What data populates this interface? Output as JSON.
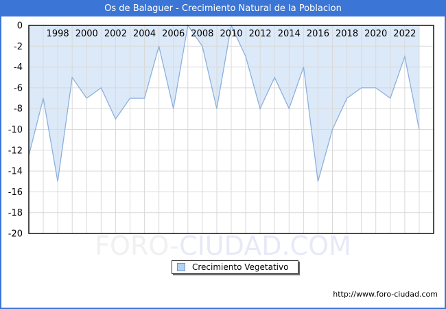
{
  "title_bar": {
    "text": "Os de Balaguer - Crecimiento Natural de la Poblacion"
  },
  "chart_data": {
    "type": "area",
    "title": "Os de Balaguer - Crecimiento Natural de la Poblacion",
    "series": [
      {
        "name": "Crecimiento Vegetativo",
        "x": [
          1996,
          1997,
          1998,
          1999,
          2000,
          2001,
          2002,
          2003,
          2004,
          2005,
          2006,
          2007,
          2008,
          2009,
          2010,
          2011,
          2012,
          2013,
          2014,
          2015,
          2016,
          2017,
          2018,
          2019,
          2020,
          2021,
          2022,
          2023
        ],
        "values": [
          -12.5,
          -7,
          -15,
          -5,
          -7,
          -6,
          -9,
          -7,
          -7,
          -2,
          -8,
          0,
          -2,
          -8,
          0,
          -3,
          -8,
          -5,
          -8,
          -4,
          -15,
          -10,
          -7,
          -6,
          -6,
          -7,
          -3,
          -10
        ]
      }
    ],
    "x_range": [
      1996,
      2024
    ],
    "y_range": [
      -20,
      0
    ],
    "x_ticks": [
      1998,
      2000,
      2002,
      2004,
      2006,
      2008,
      2010,
      2012,
      2014,
      2016,
      2018,
      2020,
      2022
    ],
    "y_ticks": [
      0,
      -2,
      -4,
      -6,
      -8,
      -10,
      -12,
      -14,
      -16,
      -18,
      -20
    ],
    "grid": true,
    "legend_position": "bottom-center",
    "colors": {
      "accent_blue": "#3b76d6",
      "area_fill": "#dce9f8",
      "line": "#8cb0de",
      "grid": "#d9d9d9",
      "plot_border": "#000000",
      "tick_text": "#000000"
    }
  },
  "legend": {
    "label": "Crecimiento Vegetativo"
  },
  "watermark": {
    "left": "FORO-",
    "right": "CIUDAD.COM"
  },
  "footer": {
    "url": "http://www.foro-ciudad.com"
  }
}
